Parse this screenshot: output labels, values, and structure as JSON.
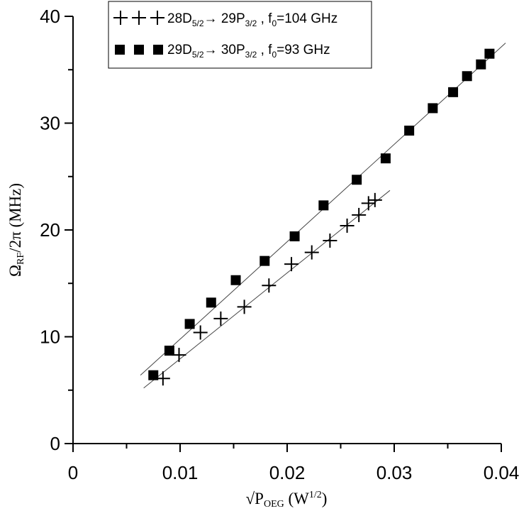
{
  "chart_data": {
    "type": "scatter",
    "title": "",
    "xlabel": {
      "prefix": "√P",
      "sub": "OEG",
      "suffix_open": " (W",
      "sup": "1/2",
      "suffix_close": ")"
    },
    "ylabel": {
      "prefix": "Ω",
      "sub": "RF",
      "suffix": "/2π (MHz)"
    },
    "xlim": [
      0,
      0.04
    ],
    "ylim": [
      0,
      40
    ],
    "x_ticks": [
      0,
      0.01,
      0.02,
      0.03,
      0.04
    ],
    "x_tick_labels": [
      "0",
      "0.01",
      "0.02",
      "0.03",
      "0.04"
    ],
    "y_ticks": [
      0,
      10,
      20,
      30,
      40
    ],
    "y_tick_labels": [
      "0",
      "10",
      "20",
      "30",
      "40"
    ],
    "grid": false,
    "legend_position": "top-left",
    "series": [
      {
        "name": "28D5/2→29P3/2 , f0=104 GHz",
        "legend": {
          "a": "28D",
          "a_sub": "5/2",
          "arrow": "→ 29P",
          "b_sub": "3/2",
          "c": " , f",
          "c_sub": "0",
          "d": "=104 GHz"
        },
        "marker": "plus",
        "color": "#000000",
        "x": [
          0.0084,
          0.0099,
          0.0119,
          0.0138,
          0.016,
          0.0183,
          0.0204,
          0.0223,
          0.024,
          0.0256,
          0.0267,
          0.0276,
          0.0282
        ],
        "y": [
          6.1,
          8.3,
          10.4,
          11.7,
          12.8,
          14.8,
          16.8,
          17.9,
          19.0,
          20.4,
          21.4,
          22.5,
          22.8
        ],
        "fit": {
          "x": [
            0.0066,
            0.0296
          ],
          "y": [
            5.2,
            23.7
          ]
        }
      },
      {
        "name": "29D5/2→30P3/2 , f0=93 GHz",
        "legend": {
          "a": "29D",
          "a_sub": "5/2",
          "arrow": "→ 30P",
          "b_sub": "3/2",
          "c": " , f",
          "c_sub": "0",
          "d": "=93 GHz"
        },
        "marker": "square",
        "color": "#000000",
        "x": [
          0.0075,
          0.009,
          0.0109,
          0.0129,
          0.0152,
          0.0179,
          0.0207,
          0.0234,
          0.0265,
          0.0292,
          0.0314,
          0.0336,
          0.0355,
          0.0368,
          0.0381,
          0.0389
        ],
        "y": [
          6.4,
          8.7,
          11.2,
          13.2,
          15.3,
          17.1,
          19.4,
          22.3,
          24.7,
          26.7,
          29.3,
          31.4,
          32.9,
          34.4,
          35.5,
          36.5
        ],
        "fit": {
          "x": [
            0.0063,
            0.0404
          ],
          "y": [
            6.4,
            37.5
          ]
        }
      }
    ]
  }
}
